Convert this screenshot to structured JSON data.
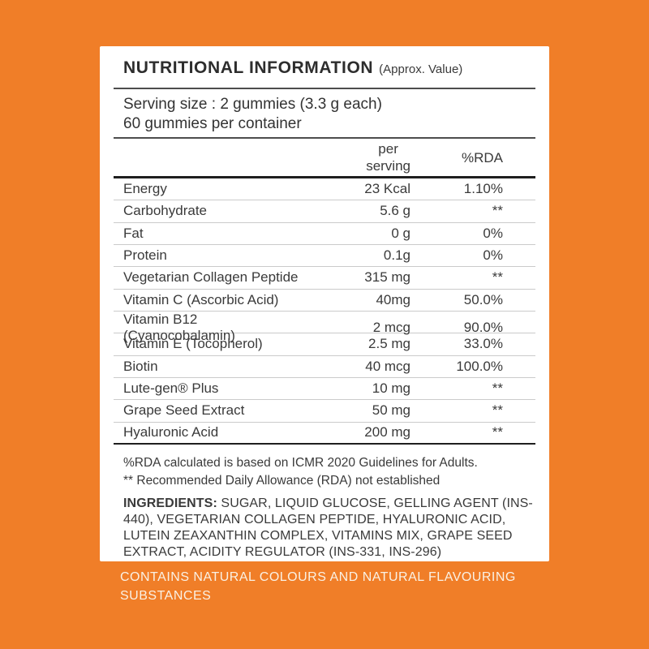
{
  "colors": {
    "background_orange": "#F07E28",
    "card_background": "#FFFFFF",
    "text_dark": "#3A3A3A",
    "divider_light": "#CBCBCB",
    "rule_dark": "#1F1F1F",
    "footer_text": "#FAF1E4"
  },
  "card": {
    "title": "NUTRITIONAL INFORMATION",
    "title_suffix": "(Approx. Value)",
    "serving": {
      "line1": "Serving size : 2 gummies (3.3 g each)",
      "line2": "60 gummies per container"
    },
    "header": {
      "per_line1": "per",
      "per_line2": "serving",
      "rda": "%RDA"
    },
    "rows": [
      {
        "label": "Energy",
        "per_serving": "23 Kcal",
        "rda": "1.10%"
      },
      {
        "label": "Carbohydrate",
        "per_serving": "5.6 g",
        "rda": "**"
      },
      {
        "label": "Fat",
        "per_serving": "0 g",
        "rda": "0%"
      },
      {
        "label": "Protein",
        "per_serving": "0.1g",
        "rda": "0%"
      },
      {
        "label": "Vegetarian Collagen Peptide",
        "per_serving": "315 mg",
        "rda": "**"
      },
      {
        "label": "Vitamin C (Ascorbic Acid)",
        "per_serving": "40mg",
        "rda": "50.0%"
      },
      {
        "label": "Vitamin B12 (Cyanocobalamin)",
        "per_serving": "2 mcg",
        "rda": "90.0%"
      },
      {
        "label": "Vitamin E (Tocopherol)",
        "per_serving": "2.5 mg",
        "rda": "33.0%"
      },
      {
        "label": "Biotin",
        "per_serving": "40 mcg",
        "rda": "100.0%"
      },
      {
        "label": "Lute-gen® Plus",
        "per_serving": "10 mg",
        "rda": "**"
      },
      {
        "label": "Grape Seed Extract",
        "per_serving": "50 mg",
        "rda": "**"
      },
      {
        "label": "Hyaluronic Acid",
        "per_serving": "200 mg",
        "rda": "**"
      }
    ],
    "notes": [
      "%RDA calculated is based on ICMR 2020 Guidelines for Adults.",
      "** Recommended Daily Allowance (RDA) not established"
    ],
    "ingredients_label": "INGREDIENTS:",
    "ingredients_text": "SUGAR, LIQUID GLUCOSE, GELLING AGENT (INS-440), VEGETARIAN COLLAGEN PEPTIDE, HYALURONIC ACID, LUTEIN ZEAXANTHIN COMPLEX, VITAMINS MIX, GRAPE SEED EXTRACT, ACIDITY REGULATOR (INS-331, INS-296)"
  },
  "footer": {
    "text": "CONTAINS NATURAL COLOURS AND NATURAL FLAVOURING SUBSTANCES"
  }
}
